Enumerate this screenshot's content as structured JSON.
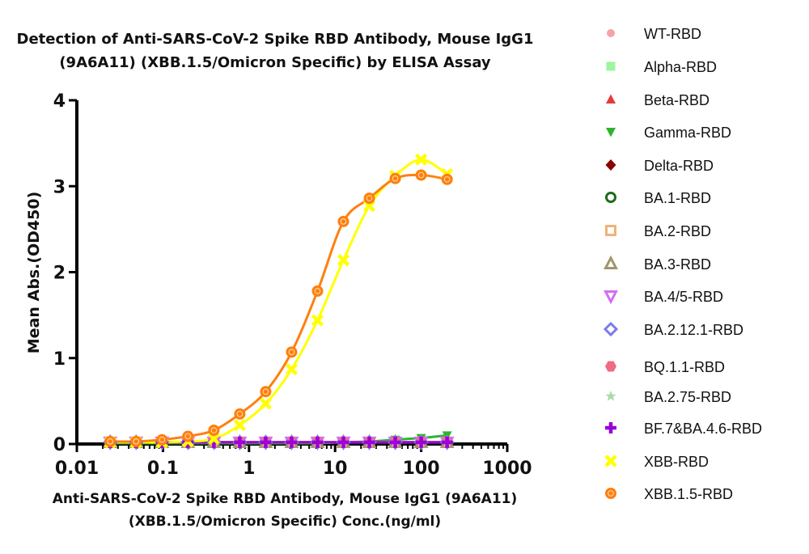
{
  "chart_data": {
    "type": "scatter",
    "title": [
      "Detection of Anti-SARS-CoV-2 Spike RBD Antibody, Mouse IgG1",
      "(9A6A11) (XBB.1.5/Omicron Specific) by ELISA Assay"
    ],
    "xlabel": [
      "Anti-SARS-CoV-2 Spike RBD Antibody, Mouse IgG1 (9A6A11)",
      "(XBB.1.5/Omicron Specific) Conc.(ng/ml)"
    ],
    "ylabel": "Mean Abs.(OD450)",
    "x_scale": "log",
    "xlim": [
      0.01,
      1000
    ],
    "ylim": [
      0,
      4
    ],
    "x_ticks": [
      0.01,
      0.1,
      1,
      10,
      100,
      1000
    ],
    "x_tick_labels": [
      "0.01",
      "0.1",
      "1",
      "10",
      "100",
      "1000"
    ],
    "y_ticks": [
      0,
      1,
      2,
      3,
      4
    ],
    "y_tick_labels": [
      "0",
      "1",
      "2",
      "3",
      "4"
    ],
    "legend_position": "right",
    "x": [
      0.0244,
      0.0488,
      0.0977,
      0.195,
      0.391,
      0.781,
      1.5625,
      3.125,
      6.25,
      12.5,
      25,
      50,
      100,
      200
    ],
    "series": [
      {
        "name": "WT-RBD",
        "marker": "circle-small",
        "color": "#f4a3a8",
        "values": [
          0.02,
          0.02,
          0.02,
          0.02,
          0.02,
          0.02,
          0.02,
          0.02,
          0.02,
          0.02,
          0.02,
          0.02,
          0.02,
          0.02
        ]
      },
      {
        "name": "Alpha-RBD",
        "marker": "square",
        "color": "#9ef59e",
        "values": [
          0.02,
          0.02,
          0.02,
          0.02,
          0.02,
          0.02,
          0.02,
          0.02,
          0.02,
          0.02,
          0.02,
          0.02,
          0.02,
          0.02
        ]
      },
      {
        "name": "Beta-RBD",
        "marker": "triangle-up",
        "color": "#e53b3b",
        "values": [
          0.02,
          0.02,
          0.02,
          0.02,
          0.02,
          0.02,
          0.02,
          0.02,
          0.02,
          0.02,
          0.02,
          0.02,
          0.02,
          0.02
        ]
      },
      {
        "name": "Gamma-RBD",
        "marker": "triangle-down",
        "color": "#2cb52c",
        "values": [
          0.01,
          0.01,
          0.01,
          0.01,
          0.01,
          0.01,
          0.01,
          0.01,
          0.01,
          0.02,
          0.03,
          0.05,
          0.07,
          0.1
        ]
      },
      {
        "name": "Delta-RBD",
        "marker": "diamond",
        "color": "#8b0000",
        "values": [
          0.02,
          0.02,
          0.02,
          0.02,
          0.02,
          0.02,
          0.02,
          0.02,
          0.02,
          0.02,
          0.02,
          0.02,
          0.02,
          0.02
        ]
      },
      {
        "name": "BA.1-RBD",
        "marker": "circle-ring",
        "color": "#1e6b1e",
        "values": [
          0.02,
          0.02,
          0.02,
          0.02,
          0.02,
          0.02,
          0.02,
          0.02,
          0.02,
          0.02,
          0.02,
          0.02,
          0.02,
          0.02
        ]
      },
      {
        "name": "BA.2-RBD",
        "marker": "square-open",
        "color": "#f0b27a",
        "values": [
          0.02,
          0.02,
          0.02,
          0.02,
          0.02,
          0.02,
          0.02,
          0.02,
          0.02,
          0.02,
          0.02,
          0.02,
          0.02,
          0.02
        ]
      },
      {
        "name": "BA.3-RBD",
        "marker": "triangle-up-open",
        "color": "#a0956b",
        "values": [
          0.02,
          0.02,
          0.02,
          0.02,
          0.02,
          0.02,
          0.02,
          0.02,
          0.02,
          0.02,
          0.02,
          0.02,
          0.02,
          0.02
        ]
      },
      {
        "name": "BA.4/5-RBD",
        "marker": "triangle-down-open",
        "color": "#d36ff0",
        "values": [
          0.02,
          0.02,
          0.02,
          0.02,
          0.02,
          0.02,
          0.02,
          0.02,
          0.02,
          0.02,
          0.02,
          0.02,
          0.02,
          0.02
        ]
      },
      {
        "name": "BA.2.12.1-RBD",
        "marker": "diamond-open",
        "color": "#7b7bea",
        "values": [
          0.02,
          0.02,
          0.02,
          0.02,
          0.02,
          0.02,
          0.02,
          0.02,
          0.02,
          0.02,
          0.02,
          0.02,
          0.02,
          0.02
        ]
      },
      {
        "name": "BQ.1.1-RBD",
        "marker": "hexagon",
        "color": "#f06a84",
        "values": [
          0.02,
          0.02,
          0.02,
          0.02,
          0.02,
          0.02,
          0.02,
          0.02,
          0.02,
          0.02,
          0.02,
          0.02,
          0.02,
          0.02
        ]
      },
      {
        "name": "BA.2.75-RBD",
        "marker": "star",
        "color": "#a9dba9",
        "values": [
          0.02,
          0.02,
          0.02,
          0.02,
          0.02,
          0.02,
          0.02,
          0.02,
          0.02,
          0.02,
          0.02,
          0.02,
          0.02,
          0.02
        ]
      },
      {
        "name": "BF.7&BA.4.6-RBD",
        "marker": "plus",
        "color": "#9b00d9",
        "values": [
          0.02,
          0.02,
          0.02,
          0.02,
          0.02,
          0.02,
          0.02,
          0.02,
          0.02,
          0.02,
          0.02,
          0.02,
          0.02,
          0.02
        ]
      },
      {
        "name": "XBB-RBD",
        "marker": "cross",
        "color": "#ffff00",
        "values": [
          0.02,
          0.02,
          0.02,
          0.03,
          0.06,
          0.22,
          0.47,
          0.87,
          1.44,
          2.14,
          2.77,
          3.12,
          3.31,
          3.14
        ]
      },
      {
        "name": "XBB.1.5-RBD",
        "marker": "circle-dot",
        "color": "#ff7f0e",
        "values": [
          0.03,
          0.03,
          0.05,
          0.09,
          0.16,
          0.35,
          0.61,
          1.07,
          1.78,
          2.59,
          2.86,
          3.09,
          3.13,
          3.08
        ]
      }
    ]
  }
}
